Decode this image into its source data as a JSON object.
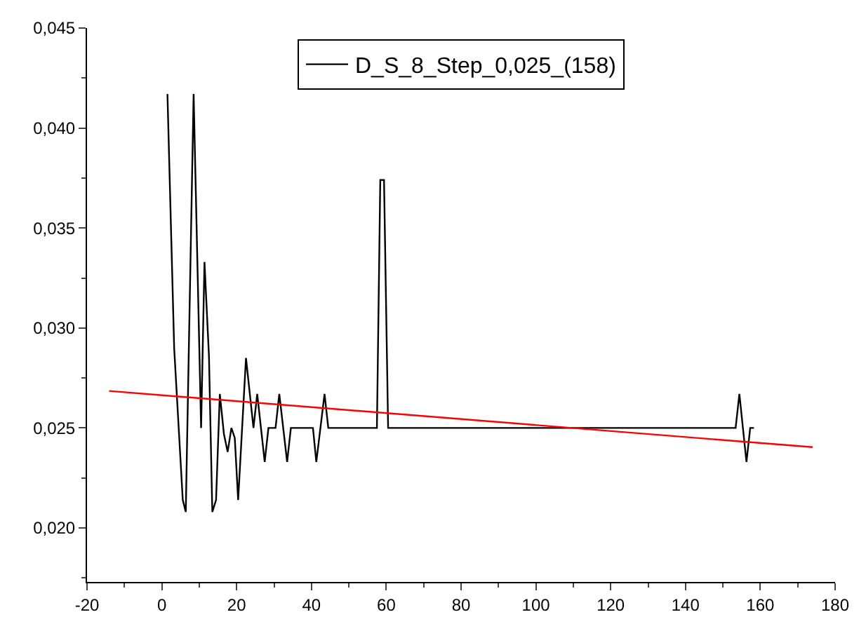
{
  "chart_data": {
    "type": "line",
    "xlim": [
      -20,
      180
    ],
    "ylim": [
      0.0173,
      0.045
    ],
    "xticks": [
      -20,
      0,
      20,
      40,
      60,
      80,
      100,
      120,
      140,
      160,
      180
    ],
    "yticks": [
      {
        "value": 0.02,
        "label": "0,020"
      },
      {
        "value": 0.025,
        "label": "0,025"
      },
      {
        "value": 0.03,
        "label": "0,030"
      },
      {
        "value": 0.035,
        "label": "0,035"
      },
      {
        "value": 0.04,
        "label": "0,040"
      },
      {
        "value": 0.045,
        "label": "0,045"
      }
    ],
    "legend": "top",
    "series": [
      {
        "name": "D_S_8_Step_0,025_(158)",
        "color": "#000000",
        "x": [
          1.5,
          3.3,
          5.6,
          6.4,
          8.5,
          10.5,
          11.4,
          12.6,
          13.5,
          14.5,
          15.5,
          16.6,
          17.6,
          18.6,
          19.5,
          20.4,
          22.5,
          24.5,
          25.5,
          27.5,
          28.5,
          30.4,
          31.4,
          33.5,
          34.5,
          40.4,
          41.3,
          43.5,
          44.5,
          57.5,
          58.4,
          59.4,
          60.5,
          153.4,
          154.4,
          156.3,
          157.3,
          158.3
        ],
        "values": [
          0.0417,
          0.029,
          0.0214,
          0.0208,
          0.0417,
          0.025,
          0.0333,
          0.0286,
          0.0208,
          0.0214,
          0.0267,
          0.0247,
          0.0238,
          0.025,
          0.0245,
          0.0214,
          0.0285,
          0.025,
          0.0267,
          0.0233,
          0.025,
          0.025,
          0.0267,
          0.0233,
          0.025,
          0.025,
          0.0233,
          0.0267,
          0.025,
          0.025,
          0.0374,
          0.0374,
          0.025,
          0.025,
          0.0267,
          0.0233,
          0.025,
          0.025
        ]
      },
      {
        "type": "line",
        "color": "#ff0000",
        "x": [
          -14.1,
          174
        ],
        "values": [
          0.02685,
          0.02404
        ]
      }
    ]
  }
}
